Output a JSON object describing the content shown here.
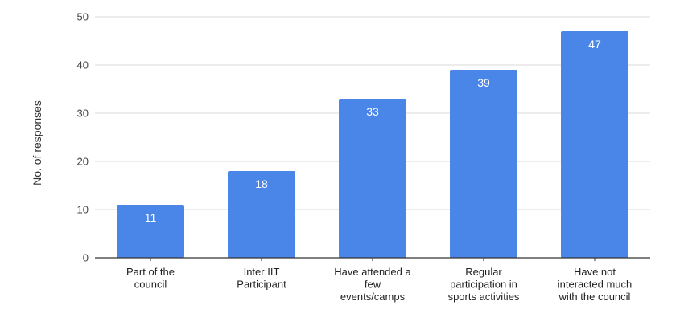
{
  "chart_data": {
    "type": "bar",
    "title": "",
    "xlabel": "",
    "ylabel": "No. of responses",
    "ylim": [
      0,
      50
    ],
    "yticks": [
      0,
      10,
      20,
      30,
      40,
      50
    ],
    "grid": true,
    "legend": "none",
    "categories": [
      [
        "Part of the",
        "council"
      ],
      [
        "Inter IIT",
        "Participant"
      ],
      [
        "Have attended a",
        "few",
        "events/camps"
      ],
      [
        "Regular",
        "participation in",
        "sports activities"
      ],
      [
        "Have not",
        "interacted much",
        "with the council"
      ]
    ],
    "values": [
      11,
      18,
      33,
      39,
      47
    ],
    "colors": {
      "bar": "#4a86e8",
      "grid": "#d9d9d9",
      "axis": "#333333",
      "data_label": "#ffffff"
    }
  }
}
